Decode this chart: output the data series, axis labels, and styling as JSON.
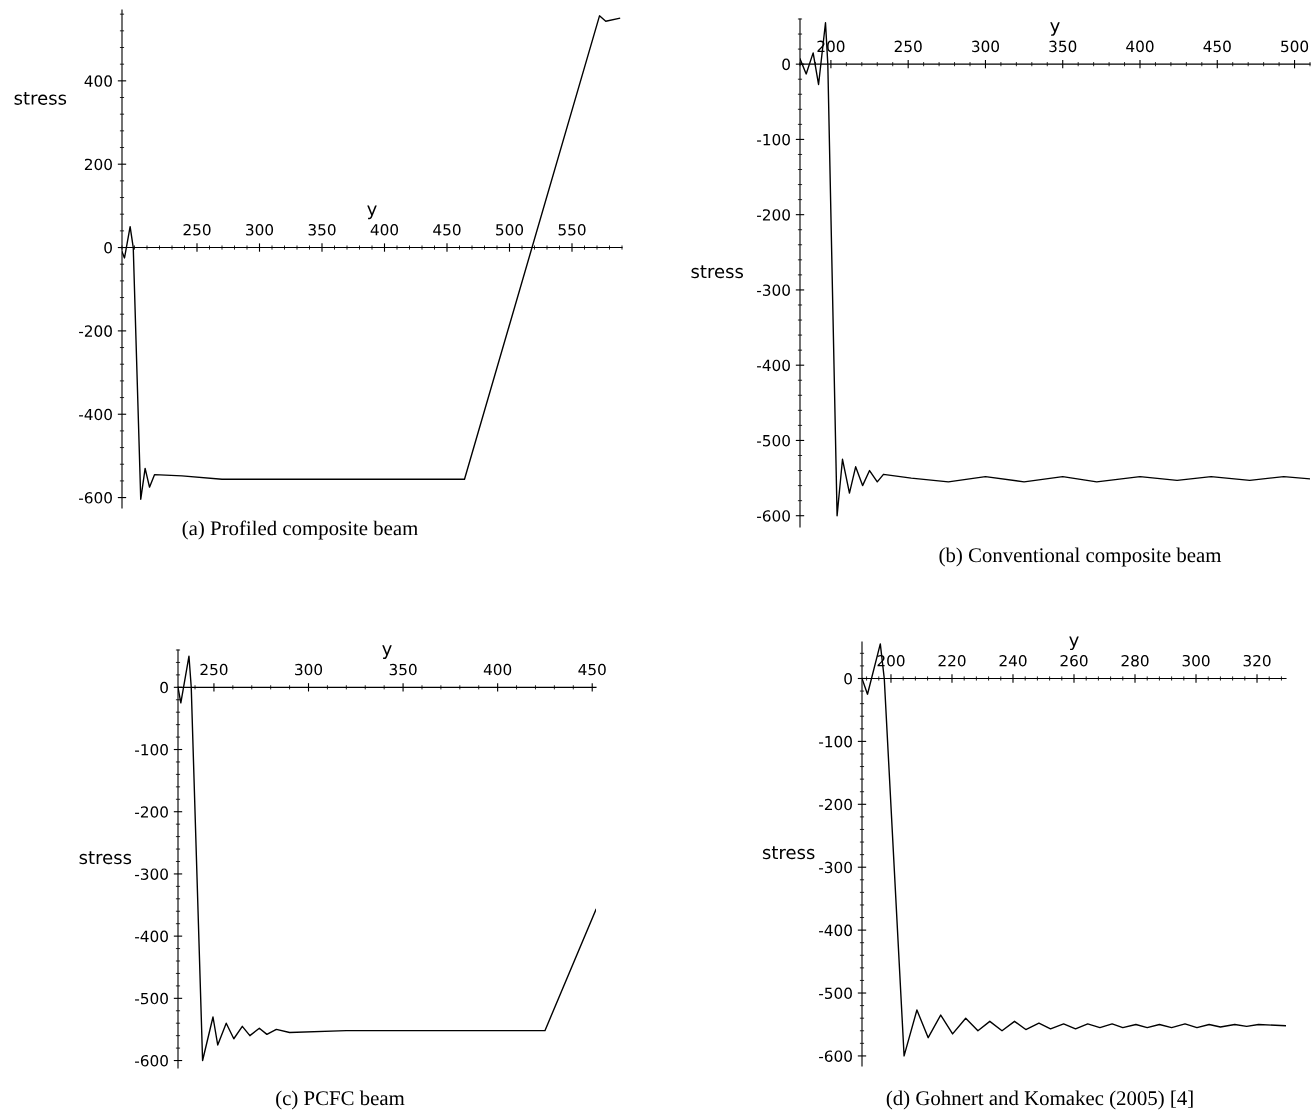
{
  "chart_data": [
    {
      "type": "line",
      "title": "(a) Profiled composite beam",
      "xlabel": "y",
      "ylabel": "stress",
      "xlim": [
        190,
        590
      ],
      "ylim": [
        -625,
        570
      ],
      "xticks": [
        250,
        300,
        350,
        400,
        450,
        500,
        550
      ],
      "yticks": [
        -600,
        -400,
        -200,
        0,
        200,
        400
      ],
      "grid": false,
      "legend": false,
      "series": [
        {
          "color": "#000000",
          "x": [
            190,
            192,
            196.5,
            199,
            205,
            208.5,
            212,
            216,
            238,
            270,
            445,
            464,
            572,
            577,
            588
          ],
          "values": [
            -10,
            -25,
            50,
            0,
            -604,
            -530,
            -575,
            -545,
            -548,
            -556,
            -556,
            -556,
            556,
            543,
            550
          ]
        }
      ]
    },
    {
      "type": "line",
      "title": "(b) Conventional composite beam",
      "xlabel": "y",
      "ylabel": "stress",
      "xlim": [
        180,
        510
      ],
      "ylim": [
        -615,
        60
      ],
      "xticks": [
        200,
        250,
        300,
        350,
        400,
        450,
        500
      ],
      "yticks": [
        -600,
        -500,
        -400,
        -300,
        -200,
        -100,
        0
      ],
      "grid": false,
      "legend": false,
      "series": [
        {
          "color": "#000000",
          "x": [
            180,
            184,
            188.5,
            192,
            196.5,
            198,
            204,
            207.5,
            212,
            216,
            220.5,
            225,
            230,
            234,
            252,
            276,
            300,
            325,
            350,
            372,
            400,
            424,
            446,
            471,
            493,
            510
          ],
          "values": [
            7,
            -13,
            15,
            -27,
            55,
            0,
            -600,
            -525,
            -570,
            -535,
            -560,
            -540,
            -555,
            -545,
            -550,
            -555,
            -548,
            -555,
            -548,
            -555,
            -548,
            -553,
            -548,
            -553,
            -548,
            -551
          ]
        }
      ]
    },
    {
      "type": "line",
      "title": "(c) PCFC beam",
      "xlabel": "y",
      "ylabel": "stress",
      "xlim": [
        231,
        452
      ],
      "ylim": [
        -612,
        60
      ],
      "xticks": [
        250,
        300,
        350,
        400,
        450
      ],
      "yticks": [
        -600,
        -500,
        -400,
        -300,
        -200,
        -100,
        0
      ],
      "grid": false,
      "legend": false,
      "series": [
        {
          "color": "#000000",
          "x": [
            231,
            232.5,
            236.8,
            238,
            244,
            249.5,
            252,
            256.5,
            260.5,
            265,
            269,
            274,
            278,
            283,
            290,
            320,
            425,
            452
          ],
          "values": [
            0,
            -25,
            50,
            0,
            -600,
            -530,
            -575,
            -540,
            -565,
            -545,
            -560,
            -548,
            -558,
            -550,
            -555,
            -552,
            -552,
            -357
          ]
        }
      ]
    },
    {
      "type": "line",
      "title": "(d) Gohnert and Komakec (2005) [4]",
      "xlabel": "y",
      "ylabel": "stress",
      "xlim": [
        190.5,
        329.5
      ],
      "ylim": [
        -616,
        58
      ],
      "xticks": [
        200,
        220,
        240,
        260,
        280,
        300,
        320
      ],
      "yticks": [
        -600,
        -500,
        -400,
        -300,
        -200,
        -100,
        0
      ],
      "grid": false,
      "legend": false,
      "series": [
        {
          "color": "#000000",
          "x": [
            190.5,
            192.3,
            196.5,
            197.8,
            204.3,
            208.5,
            212.2,
            216.3,
            220.2,
            224.5,
            228.5,
            232.4,
            236.4,
            240.5,
            244.2,
            248.5,
            252.3,
            256.6,
            260.5,
            264.5,
            268.5,
            272.5,
            276,
            280.3,
            284,
            288,
            292,
            296.4,
            300.3,
            304.3,
            308,
            312.7,
            316.6,
            320.5,
            329.4
          ],
          "values": [
            0,
            -25,
            55,
            0,
            -600,
            -527,
            -571,
            -535,
            -565,
            -540,
            -560,
            -545,
            -560,
            -545,
            -558,
            -548,
            -557,
            -549,
            -557,
            -549,
            -555,
            -549,
            -555,
            -550,
            -555,
            -550,
            -555,
            -549,
            -555,
            -550,
            -554,
            -550,
            -553,
            -550,
            -552
          ]
        }
      ]
    }
  ]
}
